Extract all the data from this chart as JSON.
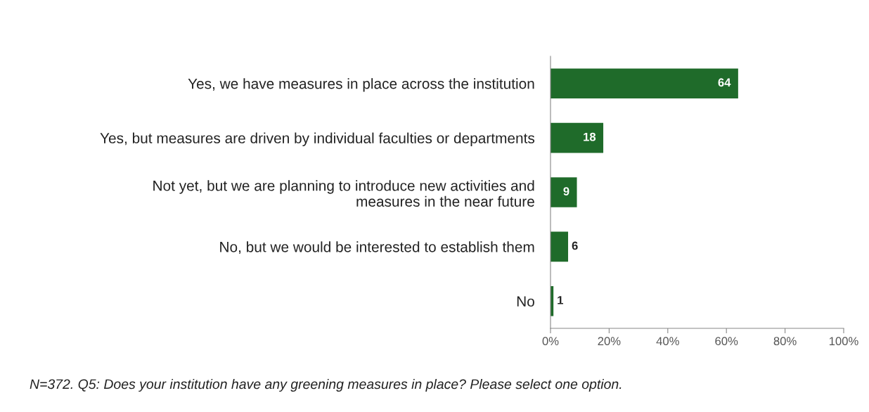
{
  "chart_data": {
    "type": "bar",
    "orientation": "horizontal",
    "categories": [
      "Yes, we have measures in place across the institution",
      "Yes, but measures are driven by individual faculties or departments",
      "Not yet, but we are planning to introduce new activities and\nmeasures in the near future",
      "No, but we would be interested to establish them",
      "No"
    ],
    "values": [
      64,
      18,
      9,
      6,
      1
    ],
    "color": "#1f6b2a",
    "xlim": [
      0,
      100
    ],
    "xticks": [
      {
        "value": 0,
        "label": "0%"
      },
      {
        "value": 20,
        "label": "20%"
      },
      {
        "value": 40,
        "label": "40%"
      },
      {
        "value": 60,
        "label": "60%"
      },
      {
        "value": 80,
        "label": "80%"
      },
      {
        "value": 100,
        "label": "100%"
      }
    ],
    "data_labels": true,
    "grid": false,
    "annotations": [
      "N=372. Q5: Does your institution have any greening measures in place? Please select one option."
    ]
  }
}
